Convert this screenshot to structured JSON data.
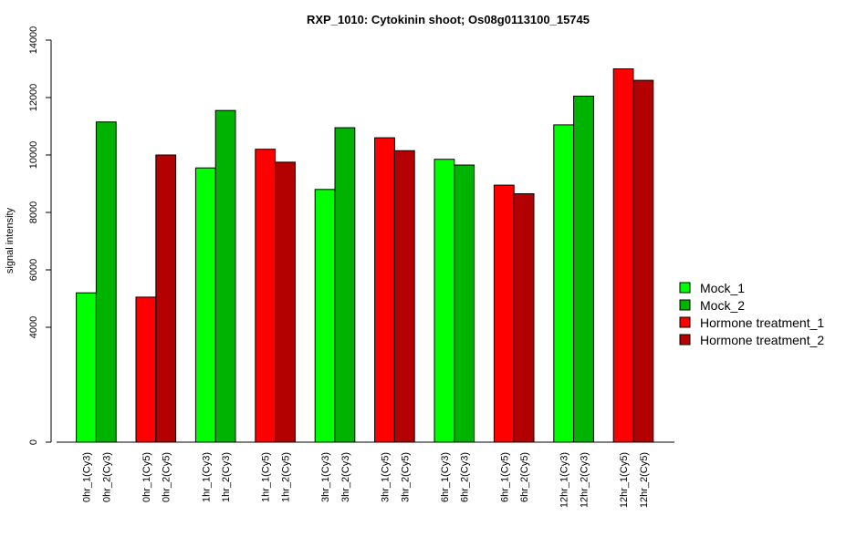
{
  "chart_data": {
    "type": "bar",
    "title": "RXP_1010: Cytokinin shoot; Os08g0113100_15745",
    "ylabel": "signal intensity",
    "xlabel": "",
    "ylim": [
      0,
      14000
    ],
    "yticks": [
      0,
      4000,
      6000,
      8000,
      10000,
      12000,
      14000
    ],
    "grid": false,
    "legend_position": "right",
    "series": [
      {
        "name": "Mock_1",
        "color": "#00ff00"
      },
      {
        "name": "Mock_2",
        "color": "#00b300"
      },
      {
        "name": "Hormone treatment_1",
        "color": "#ff0000"
      },
      {
        "name": "Hormone treatment_2",
        "color": "#b30000"
      }
    ],
    "bars": [
      {
        "label": "0hr_1(Cy3)",
        "value": 5200,
        "series": 0
      },
      {
        "label": "0hr_2(Cy3)",
        "value": 11150,
        "series": 1
      },
      {
        "label": "0hr_1(Cy5)",
        "value": 5050,
        "series": 2
      },
      {
        "label": "0hr_2(Cy5)",
        "value": 10000,
        "series": 3
      },
      {
        "label": "1hr_1(Cy3)",
        "value": 9550,
        "series": 0
      },
      {
        "label": "1hr_2(Cy3)",
        "value": 11550,
        "series": 1
      },
      {
        "label": "1hr_1(Cy5)",
        "value": 10200,
        "series": 2
      },
      {
        "label": "1hr_2(Cy5)",
        "value": 9750,
        "series": 3
      },
      {
        "label": "3hr_1(Cy3)",
        "value": 8800,
        "series": 0
      },
      {
        "label": "3hr_2(Cy3)",
        "value": 10950,
        "series": 1
      },
      {
        "label": "3hr_1(Cy5)",
        "value": 10600,
        "series": 2
      },
      {
        "label": "3hr_2(Cy5)",
        "value": 10150,
        "series": 3
      },
      {
        "label": "6hr_1(Cy3)",
        "value": 9850,
        "series": 0
      },
      {
        "label": "6hr_2(Cy3)",
        "value": 9650,
        "series": 1
      },
      {
        "label": "6hr_1(Cy5)",
        "value": 8950,
        "series": 2
      },
      {
        "label": "6hr_2(Cy5)",
        "value": 8650,
        "series": 3
      },
      {
        "label": "12hr_1(Cy3)",
        "value": 11050,
        "series": 0
      },
      {
        "label": "12hr_2(Cy3)",
        "value": 12050,
        "series": 1
      },
      {
        "label": "12hr_1(Cy5)",
        "value": 13000,
        "series": 2
      },
      {
        "label": "12hr_2(Cy5)",
        "value": 12600,
        "series": 3
      }
    ]
  }
}
